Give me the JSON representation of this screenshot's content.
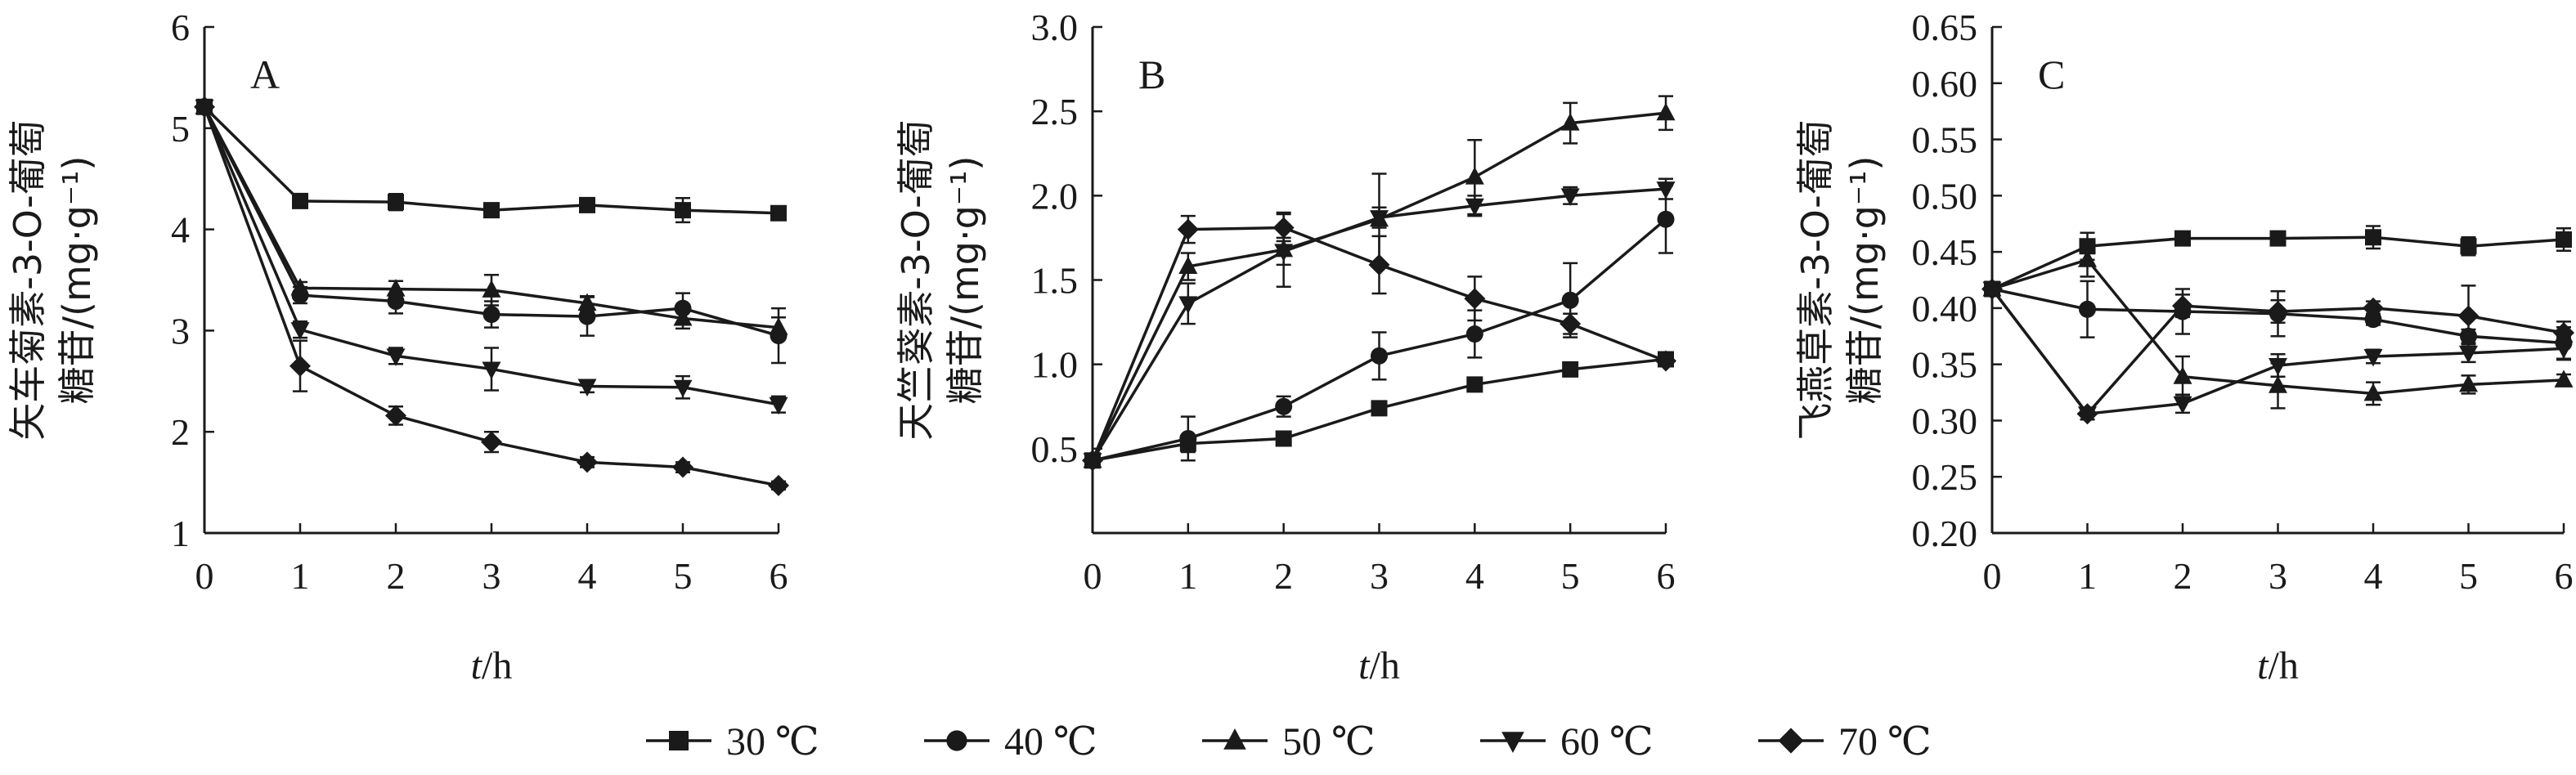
{
  "colors": {
    "ink": "#1a1a1a",
    "background": "#ffffff"
  },
  "legend": [
    {
      "label": "30 ℃",
      "marker": "square"
    },
    {
      "label": "40 ℃",
      "marker": "circle"
    },
    {
      "label": "50 ℃",
      "marker": "triangle-up"
    },
    {
      "label": "60 ℃",
      "marker": "triangle-down"
    },
    {
      "label": "70 ℃",
      "marker": "diamond"
    }
  ],
  "chart_data": [
    {
      "type": "line",
      "panel_label": "A",
      "ylabel_line1": "矢车菊素-3-O-葡萄",
      "ylabel_line2": "糖苷/(mg·g⁻¹)",
      "xlabel_italic": "t",
      "xlabel_rest": "/h",
      "x": [
        0,
        1,
        2,
        3,
        4,
        5,
        6
      ],
      "xticks": [
        "0",
        "1",
        "2",
        "3",
        "4",
        "5",
        "6"
      ],
      "ylim": [
        1,
        6
      ],
      "yticks": [
        "1",
        "2",
        "3",
        "4",
        "5",
        "6"
      ],
      "series": [
        {
          "name": "30 ℃",
          "marker": "square",
          "values": [
            5.21,
            4.28,
            4.27,
            4.19,
            4.24,
            4.19,
            4.16
          ],
          "err": [
            0.03,
            0.05,
            0.08,
            0.06,
            0.05,
            0.12,
            0.04
          ]
        },
        {
          "name": "40 ℃",
          "marker": "circle",
          "values": [
            5.21,
            3.35,
            3.29,
            3.16,
            3.14,
            3.22,
            2.95
          ],
          "err": [
            0.03,
            0.08,
            0.12,
            0.13,
            0.19,
            0.15,
            0.27
          ]
        },
        {
          "name": "50 ℃",
          "marker": "triangle-up",
          "values": [
            5.21,
            3.42,
            3.41,
            3.4,
            3.27,
            3.12,
            3.03
          ],
          "err": [
            0.03,
            0.06,
            0.08,
            0.15,
            0.07,
            0.1,
            0.1
          ]
        },
        {
          "name": "60 ℃",
          "marker": "triangle-down",
          "values": [
            5.21,
            3.01,
            2.75,
            2.62,
            2.45,
            2.44,
            2.27
          ],
          "err": [
            0.03,
            0.08,
            0.08,
            0.21,
            0.06,
            0.11,
            0.08
          ]
        },
        {
          "name": "70 ℃",
          "marker": "diamond",
          "values": [
            5.21,
            2.65,
            2.16,
            1.9,
            1.7,
            1.65,
            1.47
          ],
          "err": [
            0.03,
            0.25,
            0.09,
            0.1,
            0.05,
            0.05,
            0.04
          ]
        }
      ]
    },
    {
      "type": "line",
      "panel_label": "B",
      "ylabel_line1": "天竺葵素-3-O-葡萄",
      "ylabel_line2": "糖苷/(mg·g⁻¹)",
      "xlabel_italic": "t",
      "xlabel_rest": "/h",
      "x": [
        0,
        1,
        2,
        3,
        4,
        5,
        6
      ],
      "xticks": [
        "0",
        "1",
        "2",
        "3",
        "4",
        "5",
        "6"
      ],
      "ylim": [
        0,
        3.0
      ],
      "yticks": [
        "0.5",
        "1.0",
        "1.5",
        "2.0",
        "2.5",
        "3.0"
      ],
      "series": [
        {
          "name": "30 ℃",
          "marker": "square",
          "values": [
            0.43,
            0.53,
            0.56,
            0.74,
            0.88,
            0.97,
            1.03
          ],
          "err": [
            0.02,
            0.05,
            0.03,
            0.02,
            0.02,
            0.02,
            0.03
          ]
        },
        {
          "name": "40 ℃",
          "marker": "circle",
          "values": [
            0.43,
            0.56,
            0.75,
            1.05,
            1.18,
            1.38,
            1.86
          ],
          "err": [
            0.02,
            0.13,
            0.06,
            0.14,
            0.14,
            0.22,
            0.2
          ]
        },
        {
          "name": "50 ℃",
          "marker": "triangle-up",
          "values": [
            0.43,
            1.58,
            1.68,
            1.86,
            2.11,
            2.43,
            2.49
          ],
          "err": [
            0.02,
            0.08,
            0.22,
            0.27,
            0.22,
            0.12,
            0.1
          ]
        },
        {
          "name": "60 ℃",
          "marker": "triangle-down",
          "values": [
            0.43,
            1.36,
            1.67,
            1.87,
            1.94,
            2.0,
            2.04
          ],
          "err": [
            0.02,
            0.12,
            0.08,
            0.06,
            0.06,
            0.05,
            0.06
          ]
        },
        {
          "name": "70 ℃",
          "marker": "diamond",
          "values": [
            0.43,
            1.8,
            1.81,
            1.59,
            1.39,
            1.24,
            1.02
          ],
          "err": [
            0.02,
            0.08,
            0.08,
            0.17,
            0.13,
            0.06,
            0.03
          ]
        }
      ]
    },
    {
      "type": "line",
      "panel_label": "C",
      "ylabel_line1": "飞燕草素-3-O-葡萄",
      "ylabel_line2": "糖苷/(mg·g⁻¹)",
      "xlabel_italic": "t",
      "xlabel_rest": "/h",
      "x": [
        0,
        1,
        2,
        3,
        4,
        5,
        6
      ],
      "xticks": [
        "0",
        "1",
        "2",
        "3",
        "4",
        "5",
        "6"
      ],
      "ylim": [
        0.2,
        0.65
      ],
      "yticks": [
        "0.20",
        "0.25",
        "0.30",
        "0.35",
        "0.40",
        "0.45",
        "0.50",
        "0.55",
        "0.60",
        "0.65"
      ],
      "series": [
        {
          "name": "30 ℃",
          "marker": "square",
          "values": [
            0.417,
            0.455,
            0.462,
            0.462,
            0.463,
            0.455,
            0.461
          ],
          "err": [
            0.003,
            0.012,
            0.004,
            0.004,
            0.01,
            0.008,
            0.01
          ]
        },
        {
          "name": "40 ℃",
          "marker": "circle",
          "values": [
            0.417,
            0.399,
            0.397,
            0.395,
            0.39,
            0.375,
            0.369
          ],
          "err": [
            0.003,
            0.025,
            0.02,
            0.02,
            0.005,
            0.006,
            0.014
          ]
        },
        {
          "name": "50 ℃",
          "marker": "triangle-up",
          "values": [
            0.417,
            0.443,
            0.339,
            0.331,
            0.324,
            0.332,
            0.336
          ],
          "err": [
            0.003,
            0.015,
            0.018,
            0.02,
            0.01,
            0.008,
            0.005
          ]
        },
        {
          "name": "60 ℃",
          "marker": "triangle-down",
          "values": [
            0.417,
            0.306,
            0.315,
            0.349,
            0.357,
            0.36,
            0.364
          ],
          "err": [
            0.003,
            0.005,
            0.008,
            0.01,
            0.006,
            0.008,
            0.01
          ]
        },
        {
          "name": "70 ℃",
          "marker": "diamond",
          "values": [
            0.417,
            0.306,
            0.402,
            0.397,
            0.4,
            0.393,
            0.378
          ],
          "err": [
            0.003,
            0.005,
            0.01,
            0.01,
            0.006,
            0.027,
            0.01
          ]
        }
      ]
    }
  ]
}
